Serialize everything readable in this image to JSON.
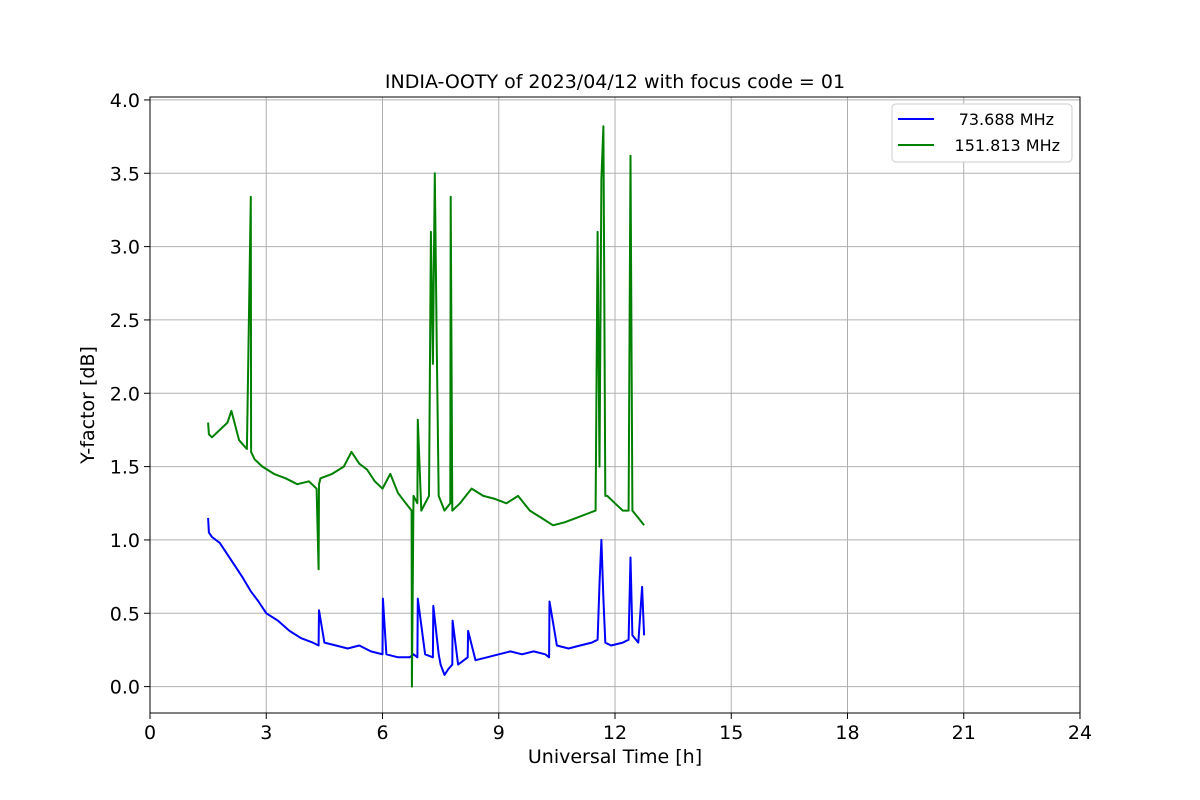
{
  "chart_data": {
    "type": "line",
    "title": "INDIA-OOTY of 2023/04/12 with focus code = 01",
    "xlabel": "Universal Time [h]",
    "ylabel": "Y-factor [dB]",
    "xlim": [
      0,
      24
    ],
    "ylim": [
      -0.18,
      4.02
    ],
    "xticks": [
      0,
      3,
      6,
      9,
      12,
      15,
      18,
      21,
      24
    ],
    "xtick_labels": [
      "0",
      "3",
      "6",
      "9",
      "12",
      "15",
      "18",
      "21",
      "24"
    ],
    "yticks": [
      0.0,
      0.5,
      1.0,
      1.5,
      2.0,
      2.5,
      3.0,
      3.5,
      4.0
    ],
    "ytick_labels": [
      "0.0",
      "0.5",
      "1.0",
      "1.5",
      "2.0",
      "2.5",
      "3.0",
      "3.5",
      "4.0"
    ],
    "grid": true,
    "legend_position": "top-right",
    "series": [
      {
        "name": "73.688 MHz",
        "color": "#0000ff",
        "x": [
          1.5,
          1.52,
          1.6,
          1.8,
          2.0,
          2.2,
          2.4,
          2.6,
          2.8,
          3.0,
          3.3,
          3.6,
          3.9,
          4.2,
          4.35,
          4.36,
          4.5,
          4.8,
          5.1,
          5.4,
          5.7,
          6.0,
          6.01,
          6.1,
          6.4,
          6.7,
          6.8,
          6.9,
          6.91,
          7.1,
          7.3,
          7.31,
          7.45,
          7.5,
          7.6,
          7.7,
          7.8,
          7.81,
          7.95,
          8.2,
          8.21,
          8.4,
          8.7,
          9.0,
          9.3,
          9.6,
          9.9,
          10.2,
          10.3,
          10.31,
          10.5,
          10.8,
          11.1,
          11.4,
          11.55,
          11.6,
          11.65,
          11.7,
          11.75,
          11.9,
          12.2,
          12.35,
          12.4,
          12.45,
          12.6,
          12.7,
          12.75
        ],
        "values": [
          1.15,
          1.05,
          1.02,
          0.98,
          0.9,
          0.82,
          0.74,
          0.65,
          0.58,
          0.5,
          0.45,
          0.38,
          0.33,
          0.3,
          0.28,
          0.52,
          0.3,
          0.28,
          0.26,
          0.28,
          0.24,
          0.22,
          0.6,
          0.22,
          0.2,
          0.2,
          0.22,
          0.2,
          0.6,
          0.22,
          0.2,
          0.55,
          0.22,
          0.15,
          0.08,
          0.12,
          0.15,
          0.45,
          0.15,
          0.2,
          0.38,
          0.18,
          0.2,
          0.22,
          0.24,
          0.22,
          0.24,
          0.22,
          0.2,
          0.58,
          0.28,
          0.26,
          0.28,
          0.3,
          0.32,
          0.7,
          1.0,
          0.6,
          0.3,
          0.28,
          0.3,
          0.32,
          0.88,
          0.35,
          0.3,
          0.68,
          0.35
        ]
      },
      {
        "name": "151.813 MHz",
        "color": "#008000",
        "x": [
          1.5,
          1.52,
          1.6,
          1.8,
          2.0,
          2.1,
          2.3,
          2.5,
          2.6,
          2.61,
          2.7,
          2.9,
          3.2,
          3.5,
          3.8,
          4.1,
          4.3,
          4.35,
          4.36,
          4.4,
          4.7,
          5.0,
          5.2,
          5.4,
          5.6,
          5.8,
          6.0,
          6.2,
          6.4,
          6.6,
          6.75,
          6.76,
          6.8,
          6.9,
          6.91,
          7.0,
          7.2,
          7.25,
          7.3,
          7.35,
          7.4,
          7.45,
          7.6,
          7.75,
          7.76,
          7.8,
          8.0,
          8.3,
          8.6,
          8.9,
          9.2,
          9.5,
          9.8,
          10.1,
          10.4,
          10.7,
          11.0,
          11.3,
          11.5,
          11.55,
          11.6,
          11.65,
          11.7,
          11.72,
          11.75,
          11.8,
          12.0,
          12.2,
          12.35,
          12.4,
          12.45,
          12.6,
          12.75
        ],
        "values": [
          1.8,
          1.72,
          1.7,
          1.75,
          1.8,
          1.88,
          1.68,
          1.62,
          3.34,
          1.6,
          1.55,
          1.5,
          1.45,
          1.42,
          1.38,
          1.4,
          1.35,
          0.8,
          1.38,
          1.42,
          1.45,
          1.5,
          1.6,
          1.52,
          1.48,
          1.4,
          1.35,
          1.45,
          1.32,
          1.25,
          1.2,
          0.0,
          1.3,
          1.25,
          1.82,
          1.2,
          1.3,
          3.1,
          2.2,
          3.5,
          2.3,
          1.3,
          1.2,
          1.25,
          3.34,
          1.2,
          1.25,
          1.35,
          1.3,
          1.28,
          1.25,
          1.3,
          1.2,
          1.15,
          1.1,
          1.12,
          1.15,
          1.18,
          1.2,
          3.1,
          1.5,
          3.46,
          3.82,
          2.8,
          1.3,
          1.3,
          1.25,
          1.2,
          1.2,
          3.62,
          1.2,
          1.15,
          1.1
        ]
      }
    ]
  }
}
